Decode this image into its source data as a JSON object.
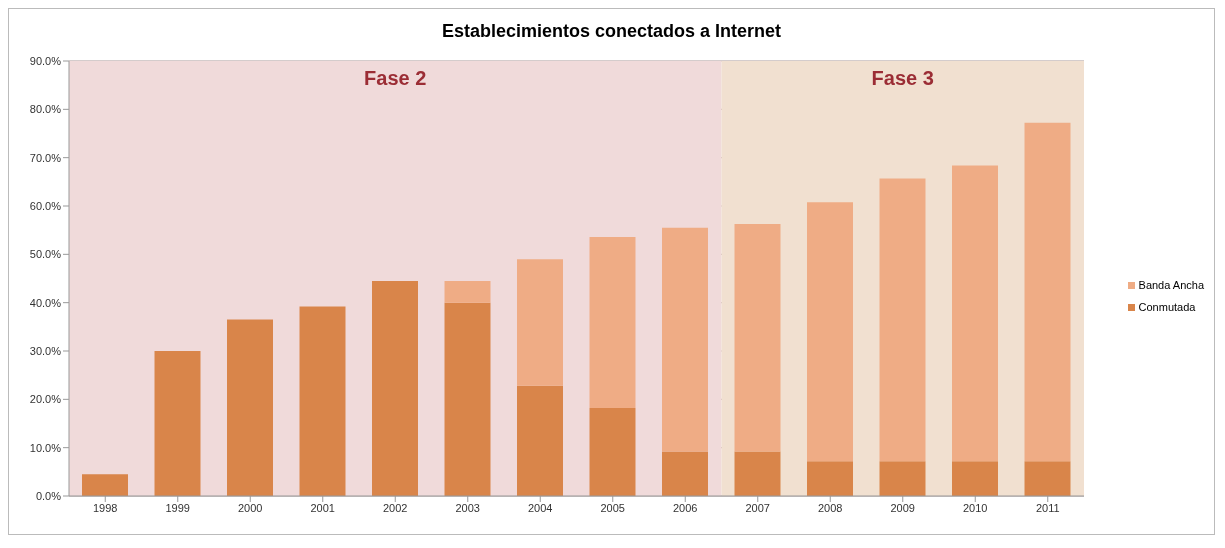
{
  "chart_data": {
    "type": "bar",
    "title": "Establecimientos conectados a Internet",
    "stacked": true,
    "categories": [
      "1998",
      "1999",
      "2000",
      "2001",
      "2002",
      "2003",
      "2004",
      "2005",
      "2006",
      "2007",
      "2008",
      "2009",
      "2010",
      "2011"
    ],
    "series": [
      {
        "name": "Conmutada",
        "color": "#d9854a",
        "values": [
          4.5,
          30,
          36.5,
          39.2,
          44.5,
          40,
          22.8,
          18.2,
          9.2,
          9.2,
          7.2,
          7.2,
          7.2,
          7.2
        ]
      },
      {
        "name": "Banda Ancha",
        "color": "#efac85",
        "values": [
          0,
          0,
          0,
          0,
          0,
          4.5,
          26.2,
          35.4,
          46.3,
          47.1,
          53.6,
          58.5,
          61.2,
          70
        ]
      }
    ],
    "ylim": [
      0,
      90
    ],
    "yticks": [
      {
        "value": 0,
        "label": "0.0%"
      },
      {
        "value": 10,
        "label": "10.0%"
      },
      {
        "value": 20,
        "label": "20.0%"
      },
      {
        "value": 30,
        "label": "30.0%"
      },
      {
        "value": 40,
        "label": "40.0%"
      },
      {
        "value": 50,
        "label": "50.0%"
      },
      {
        "value": 60,
        "label": "60.0%"
      },
      {
        "value": 70,
        "label": "70.0%"
      },
      {
        "value": 80,
        "label": "80.0%"
      },
      {
        "value": 90,
        "label": "90.0%"
      }
    ],
    "grid": "y",
    "legend": "right",
    "bands": [
      {
        "axis": "x",
        "from": "1998",
        "to": "2006",
        "label": "Fase 2",
        "color": "#f0dada"
      },
      {
        "axis": "x",
        "from": "2007",
        "to": "2011",
        "label": "Fase 3",
        "color": "#f1e0d0"
      }
    ]
  }
}
